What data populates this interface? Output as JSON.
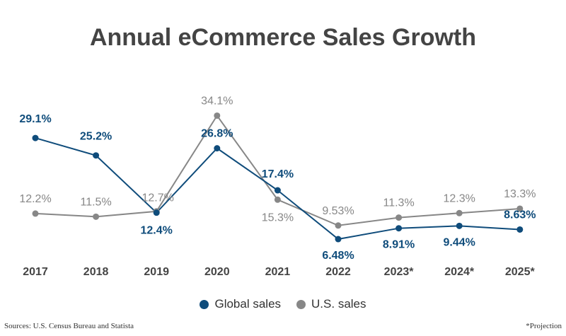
{
  "chart_data": {
    "type": "line",
    "title": "Annual eCommerce Sales Growth",
    "categories": [
      "2017",
      "2018",
      "2019",
      "2020",
      "2021",
      "2022",
      "2023*",
      "2024*",
      "2025*"
    ],
    "series": [
      {
        "name": "Global sales",
        "color": "#0f4c7b",
        "values": [
          29.1,
          25.2,
          12.4,
          26.8,
          17.4,
          6.48,
          8.91,
          9.44,
          8.63
        ],
        "labels": [
          "29.1%",
          "25.2%",
          "12.4%",
          "26.8%",
          "17.4%",
          "6.48%",
          "8.91%",
          "9.44%",
          "8.63%"
        ]
      },
      {
        "name": "U.S. sales",
        "color": "#878787",
        "values": [
          12.2,
          11.5,
          12.7,
          34.1,
          15.3,
          9.53,
          11.3,
          12.3,
          13.3
        ],
        "labels": [
          "12.2%",
          "11.5%",
          "12.7%",
          "34.1%",
          "15.3%",
          "9.53%",
          "11.3%",
          "12.3%",
          "13.3%"
        ]
      }
    ],
    "legend": "bottom",
    "grid": false
  },
  "footer": {
    "source": "Sources: U.S. Census Bureau and Statista",
    "note": "*Projection"
  }
}
